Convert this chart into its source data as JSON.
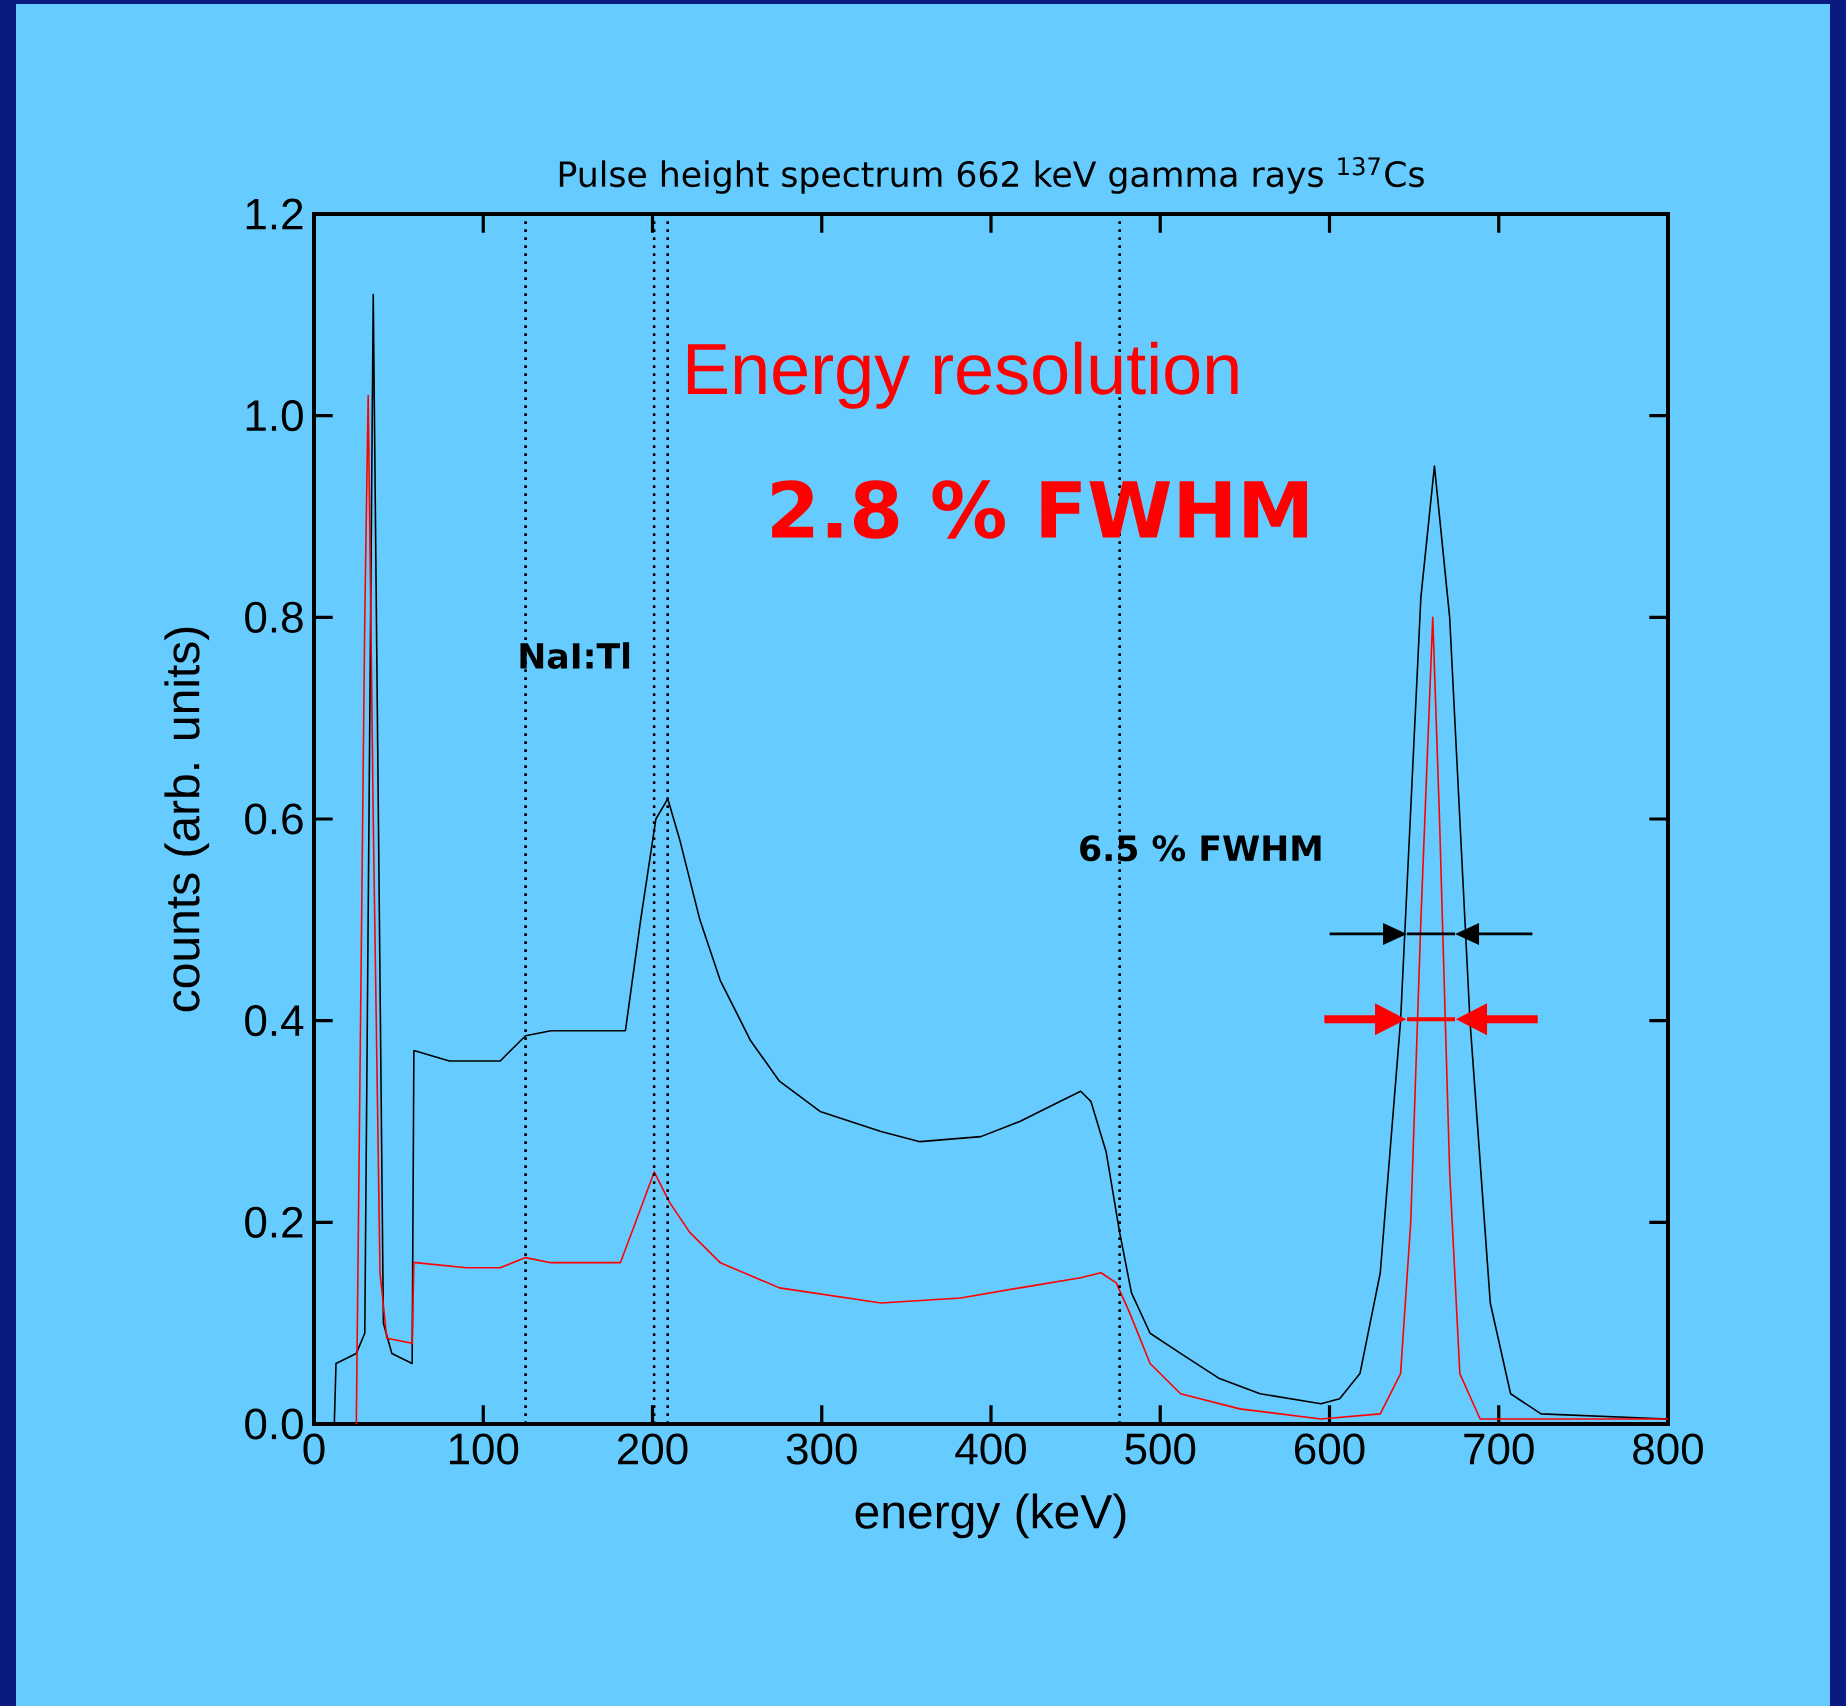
{
  "chart_data": {
    "type": "line",
    "title": "Pulse height spectrum 662 keV gamma rays $^{137}$Cs",
    "xlabel": "energy (keV)",
    "ylabel": "counts (arb. units)",
    "xlim": [
      0,
      800
    ],
    "ylim": [
      0,
      1.2
    ],
    "xticks": [
      0,
      100,
      200,
      300,
      400,
      500,
      600,
      700,
      800
    ],
    "yticks": [
      {
        "value": 0,
        "label": "0.0"
      },
      {
        "value": 0.2,
        "label": "0.2"
      },
      {
        "value": 0.4,
        "label": "0.4"
      },
      {
        "value": 0.6,
        "label": "0.6"
      },
      {
        "value": 0.8,
        "label": "0.8"
      },
      {
        "value": 1.0,
        "label": "1.0"
      },
      {
        "value": 1.2,
        "label": "1.2"
      }
    ],
    "grid": false,
    "marker": "none",
    "line_style": "solid",
    "series": [
      {
        "color": "#000000",
        "x": [
          12,
          13,
          25,
          30,
          35,
          41,
          46,
          58,
          59,
          60,
          80,
          110,
          125,
          140,
          184,
          193,
          202,
          209,
          216,
          228,
          240,
          258,
          275,
          299,
          335,
          358,
          394,
          417,
          441,
          453,
          459,
          468,
          476,
          483,
          494,
          512,
          535,
          559,
          595,
          606,
          618,
          630,
          642,
          654,
          662,
          671,
          683,
          695,
          707,
          725,
          800
        ],
        "values": [
          0,
          0.06,
          0.07,
          0.09,
          1.12,
          0.1,
          0.07,
          0.06,
          0.37,
          0.37,
          0.36,
          0.36,
          0.385,
          0.39,
          0.39,
          0.5,
          0.6,
          0.62,
          0.58,
          0.5,
          0.44,
          0.38,
          0.34,
          0.31,
          0.29,
          0.28,
          0.285,
          0.3,
          0.32,
          0.33,
          0.32,
          0.27,
          0.19,
          0.13,
          0.09,
          0.07,
          0.045,
          0.03,
          0.02,
          0.025,
          0.05,
          0.15,
          0.4,
          0.82,
          0.95,
          0.8,
          0.4,
          0.12,
          0.03,
          0.01,
          0.005
        ]
      },
      {
        "color": "#ff0000",
        "x": [
          25,
          30,
          32,
          35,
          39,
          43,
          58,
          59,
          60,
          90,
          110,
          125,
          140,
          181,
          190,
          201,
          210,
          222,
          240,
          275,
          335,
          382,
          417,
          453,
          465,
          474,
          482,
          494,
          512,
          547,
          595,
          630,
          642,
          648,
          654,
          661,
          665,
          671,
          677,
          689,
          800
        ],
        "values": [
          0,
          0.8,
          1.02,
          0.6,
          0.15,
          0.085,
          0.08,
          0.16,
          0.16,
          0.155,
          0.155,
          0.165,
          0.16,
          0.16,
          0.2,
          0.25,
          0.22,
          0.19,
          0.16,
          0.135,
          0.12,
          0.125,
          0.135,
          0.145,
          0.15,
          0.14,
          0.11,
          0.06,
          0.03,
          0.015,
          0.005,
          0.01,
          0.05,
          0.2,
          0.5,
          0.8,
          0.6,
          0.25,
          0.05,
          0.005,
          0.005
        ]
      }
    ],
    "ref_lines": [
      {
        "axis": "x",
        "value": 125,
        "color": "#000000",
        "line_style": "dotted"
      },
      {
        "axis": "x",
        "value": 201,
        "color": "#000000",
        "line_style": "dotted"
      },
      {
        "axis": "x",
        "value": 209,
        "color": "#000000",
        "line_style": "dotted"
      },
      {
        "axis": "x",
        "value": 476,
        "color": "#000000",
        "line_style": "dotted"
      }
    ],
    "annotations": [
      "Energy resolution",
      "**2.8 % FWHM**",
      "**NaI:Tl**",
      "**6.5 % FWHM**"
    ]
  }
}
